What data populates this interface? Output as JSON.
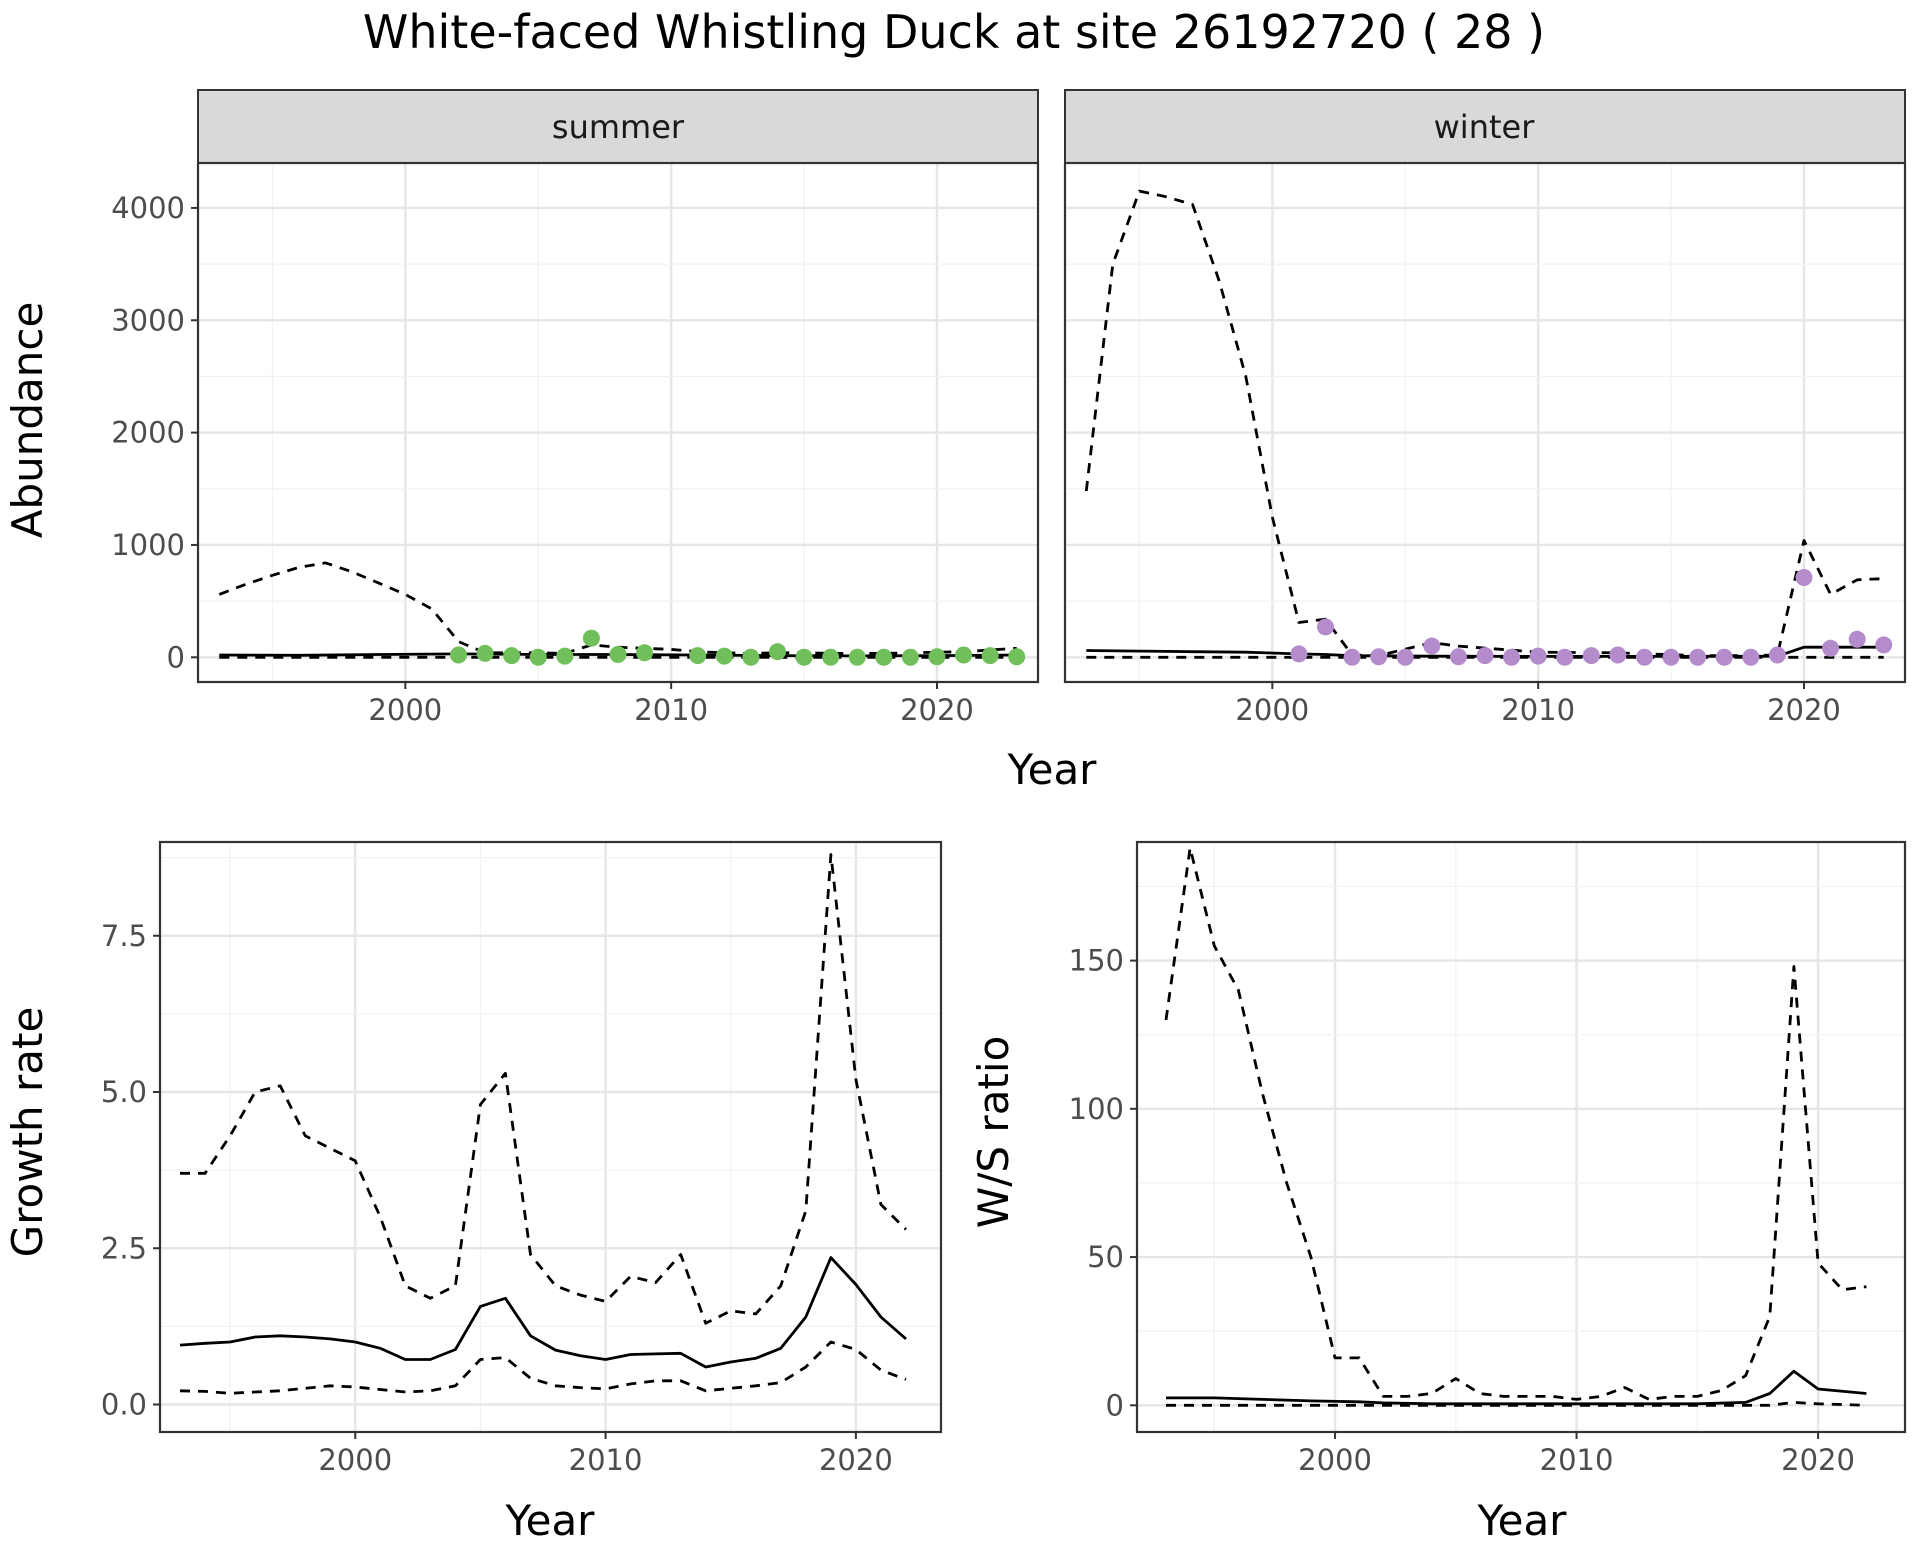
{
  "figure_title": "White-faced Whistling Duck at site 26192720 ( 28 )",
  "colors": {
    "summer_points": "#70bf5a",
    "winter_points": "#b48ccc",
    "line": "#000000",
    "grid_major": "#e6e6e6",
    "grid_minor": "#f2f2f2",
    "strip_fill": "#d9d9d9",
    "strip_border": "#333333",
    "tick_text": "#4d4d4d"
  },
  "chart_data": [
    {
      "type": "line",
      "panel": "summer",
      "strip_label": "summer",
      "xlabel": "Year",
      "ylabel": "Abundance",
      "xlim": [
        1992.2,
        2023.8
      ],
      "ylim": [
        -220,
        4400
      ],
      "xticks": [
        2000,
        2010,
        2020
      ],
      "yticks": [
        0,
        1000,
        2000,
        3000,
        4000
      ],
      "grid": true,
      "series": [
        {
          "role": "mean",
          "style": "solid",
          "x": [
            1993,
            1996,
            1999,
            2002,
            2005,
            2008,
            2011,
            2014,
            2017,
            2020,
            2023
          ],
          "y": [
            20,
            18,
            25,
            30,
            25,
            25,
            20,
            15,
            12,
            15,
            20
          ]
        },
        {
          "role": "upper",
          "style": "dashed",
          "x": [
            1993,
            1994,
            1995,
            1996,
            1997,
            1998,
            1999,
            2000,
            2001,
            2002,
            2003,
            2004,
            2005,
            2006,
            2007,
            2008,
            2009,
            2010,
            2011,
            2012,
            2013,
            2014,
            2015,
            2016,
            2017,
            2018,
            2019,
            2020,
            2021,
            2022,
            2023
          ],
          "y": [
            560,
            650,
            730,
            800,
            840,
            760,
            660,
            560,
            430,
            140,
            40,
            40,
            40,
            35,
            110,
            90,
            80,
            70,
            50,
            40,
            35,
            40,
            40,
            35,
            35,
            35,
            40,
            45,
            50,
            65,
            80
          ]
        },
        {
          "role": "lower",
          "style": "dashed",
          "x": [
            1993,
            2023
          ],
          "y": [
            0,
            0
          ]
        },
        {
          "role": "observed",
          "style": "points",
          "x": [
            2002,
            2003,
            2004,
            2005,
            2006,
            2007,
            2008,
            2009,
            2011,
            2012,
            2013,
            2014,
            2015,
            2016,
            2017,
            2018,
            2019,
            2020,
            2021,
            2022,
            2023
          ],
          "y": [
            20,
            35,
            15,
            0,
            10,
            170,
            25,
            40,
            15,
            10,
            0,
            50,
            0,
            0,
            0,
            0,
            0,
            5,
            20,
            15,
            5
          ]
        }
      ]
    },
    {
      "type": "line",
      "panel": "winter",
      "strip_label": "winter",
      "xlabel": "Year",
      "ylabel": "Abundance",
      "xlim": [
        1992.2,
        2023.8
      ],
      "ylim": [
        -220,
        4400
      ],
      "xticks": [
        2000,
        2010,
        2020
      ],
      "yticks": [
        0,
        1000,
        2000,
        3000,
        4000
      ],
      "grid": true,
      "series": [
        {
          "role": "mean",
          "style": "solid",
          "x": [
            1993,
            1995,
            1997,
            1999,
            2001,
            2002,
            2003,
            2006,
            2010,
            2015,
            2019,
            2020,
            2023
          ],
          "y": [
            60,
            55,
            50,
            45,
            30,
            25,
            15,
            10,
            8,
            8,
            10,
            90,
            90
          ]
        },
        {
          "role": "upper",
          "style": "dashed",
          "x": [
            1993,
            1994,
            1995,
            1996,
            1997,
            1998,
            1999,
            2000,
            2001,
            2002,
            2003,
            2004,
            2006,
            2007,
            2010,
            2013,
            2016,
            2018,
            2019,
            2020,
            2021,
            2022,
            2023
          ],
          "y": [
            1480,
            3500,
            4150,
            4100,
            4030,
            3350,
            2500,
            1250,
            310,
            340,
            20,
            15,
            130,
            100,
            45,
            40,
            15,
            15,
            20,
            1040,
            560,
            690,
            700
          ]
        },
        {
          "role": "lower",
          "style": "dashed",
          "x": [
            1993,
            2023
          ],
          "y": [
            0,
            0
          ]
        },
        {
          "role": "observed",
          "style": "points",
          "x": [
            2001,
            2002,
            2003,
            2004,
            2005,
            2006,
            2007,
            2008,
            2009,
            2010,
            2011,
            2012,
            2013,
            2014,
            2015,
            2016,
            2017,
            2018,
            2019,
            2020,
            2021,
            2022,
            2023
          ],
          "y": [
            30,
            270,
            0,
            5,
            0,
            100,
            5,
            15,
            0,
            10,
            0,
            15,
            20,
            0,
            0,
            0,
            0,
            0,
            20,
            710,
            80,
            160,
            110
          ]
        }
      ]
    },
    {
      "type": "line",
      "panel": "growth",
      "xlabel": "Year",
      "ylabel": "Growth rate",
      "xlim": [
        1992.2,
        2023.4
      ],
      "ylim": [
        -0.44,
        9.0
      ],
      "xticks": [
        2000,
        2010,
        2020
      ],
      "yticks": [
        0.0,
        2.5,
        5.0,
        7.5
      ],
      "ytick_labels": [
        "0.0",
        "2.5",
        "5.0",
        "7.5"
      ],
      "grid": true,
      "series": [
        {
          "role": "mean",
          "style": "solid",
          "x": [
            1993,
            1994,
            1995,
            1996,
            1997,
            1998,
            1999,
            2000,
            2001,
            2002,
            2003,
            2004,
            2005,
            2006,
            2007,
            2008,
            2009,
            2010,
            2011,
            2012,
            2013,
            2014,
            2015,
            2016,
            2017,
            2018,
            2019,
            2020,
            2021,
            2022
          ],
          "y": [
            0.95,
            0.98,
            1.0,
            1.08,
            1.1,
            1.08,
            1.05,
            1.0,
            0.9,
            0.72,
            0.72,
            0.88,
            1.57,
            1.7,
            1.1,
            0.87,
            0.78,
            0.72,
            0.8,
            0.81,
            0.82,
            0.6,
            0.68,
            0.74,
            0.9,
            1.4,
            2.35,
            1.92,
            1.4,
            1.05
          ]
        },
        {
          "role": "upper",
          "style": "dashed",
          "x": [
            1993,
            1994,
            1995,
            1996,
            1997,
            1998,
            1999,
            2000,
            2001,
            2002,
            2003,
            2004,
            2005,
            2006,
            2007,
            2008,
            2009,
            2010,
            2011,
            2012,
            2013,
            2014,
            2015,
            2016,
            2017,
            2018,
            2019,
            2020,
            2021,
            2022
          ],
          "y": [
            3.7,
            3.7,
            4.3,
            5.0,
            5.1,
            4.3,
            4.1,
            3.9,
            3.0,
            1.9,
            1.7,
            1.9,
            4.8,
            5.3,
            2.4,
            1.9,
            1.75,
            1.65,
            2.05,
            1.95,
            2.4,
            1.3,
            1.5,
            1.45,
            1.9,
            3.1,
            8.8,
            5.2,
            3.2,
            2.8
          ]
        },
        {
          "role": "lower",
          "style": "dashed",
          "x": [
            1993,
            1994,
            1995,
            1996,
            1997,
            1998,
            1999,
            2000,
            2001,
            2002,
            2003,
            2004,
            2005,
            2006,
            2007,
            2008,
            2009,
            2010,
            2011,
            2012,
            2013,
            2014,
            2015,
            2016,
            2017,
            2018,
            2019,
            2020,
            2021,
            2022
          ],
          "y": [
            0.22,
            0.21,
            0.18,
            0.2,
            0.22,
            0.26,
            0.3,
            0.28,
            0.24,
            0.2,
            0.22,
            0.3,
            0.72,
            0.75,
            0.42,
            0.3,
            0.27,
            0.25,
            0.33,
            0.38,
            0.38,
            0.22,
            0.26,
            0.3,
            0.35,
            0.6,
            1.0,
            0.88,
            0.55,
            0.4
          ]
        }
      ]
    },
    {
      "type": "line",
      "panel": "ratio",
      "xlabel": "Year",
      "ylabel": "W/S ratio",
      "xlim": [
        1991.8,
        2023.6
      ],
      "ylim": [
        -9,
        190
      ],
      "xticks": [
        2000,
        2010,
        2020
      ],
      "yticks": [
        0,
        50,
        100,
        150
      ],
      "grid": true,
      "series": [
        {
          "role": "mean",
          "style": "solid",
          "x": [
            1993,
            1995,
            1997,
            1999,
            2001,
            2002,
            2004,
            2006,
            2010,
            2015,
            2017,
            2018,
            2019,
            2020,
            2022
          ],
          "y": [
            2.5,
            2.5,
            2.0,
            1.5,
            1.2,
            0.8,
            0.5,
            0.5,
            0.5,
            0.5,
            1.0,
            4.0,
            11.5,
            5.5,
            4.0
          ]
        },
        {
          "role": "upper",
          "style": "dashed",
          "x": [
            1993,
            1994,
            1995,
            1996,
            1997,
            1998,
            1999,
            2000,
            2001,
            2002,
            2003,
            2004,
            2005,
            2006,
            2007,
            2008,
            2009,
            2010,
            2011,
            2012,
            2013,
            2014,
            2015,
            2016,
            2017,
            2018,
            2019,
            2020,
            2021,
            2022
          ],
          "y": [
            130,
            188,
            155,
            140,
            105,
            75,
            50,
            16,
            16,
            3,
            3,
            4,
            9,
            4,
            3,
            3,
            3,
            2,
            3,
            6,
            2,
            3,
            3,
            5,
            10,
            30,
            148,
            48,
            39,
            40
          ]
        },
        {
          "role": "lower",
          "style": "dashed",
          "x": [
            1993,
            2018,
            2019,
            2020,
            2022
          ],
          "y": [
            0,
            0,
            1,
            0.5,
            0
          ]
        }
      ]
    }
  ]
}
